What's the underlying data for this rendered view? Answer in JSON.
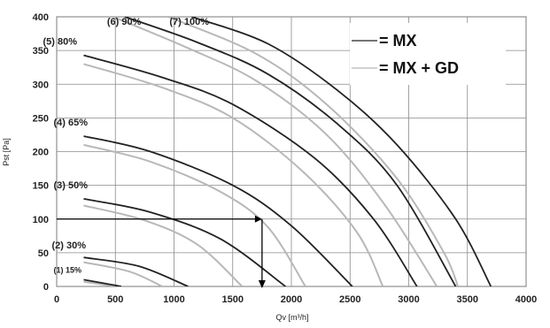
{
  "chart_data": {
    "type": "line",
    "xlabel": "Qv [m³/h]",
    "ylabel": "Pst [Pa]",
    "xlim": [
      0,
      4000
    ],
    "ylim": [
      0,
      400
    ],
    "x_ticks": [
      0,
      500,
      1000,
      1500,
      2000,
      2500,
      3000,
      3500,
      4000
    ],
    "y_ticks": [
      0,
      50,
      100,
      150,
      200,
      250,
      300,
      350,
      400
    ],
    "x_tick_labels": [
      "0",
      "500",
      "1000",
      "1500",
      "2000",
      "2500",
      "3000",
      "3500",
      "4000"
    ],
    "y_tick_labels": [
      "0",
      "50",
      "100",
      "150",
      "200",
      "250",
      "300",
      "350",
      "400"
    ],
    "grid": true,
    "legend": {
      "position": "top-right",
      "entries": [
        {
          "label": "= MX",
          "color": "#222222"
        },
        {
          "label": "= MX + GD",
          "color": "#b8b8b8"
        }
      ]
    },
    "series_colors": {
      "mx": "#222222",
      "mx_gd": "#b8b8b8",
      "guide": "#000000"
    },
    "series": [
      {
        "label": "(1) 15%",
        "mx": [
          [
            230,
            10
          ],
          [
            550,
            0
          ]
        ],
        "mx_gd": [
          [
            230,
            7
          ],
          [
            520,
            0
          ]
        ]
      },
      {
        "label": "(2) 30%",
        "mx": [
          [
            230,
            43
          ],
          [
            700,
            30
          ],
          [
            1120,
            0
          ]
        ],
        "mx_gd": [
          [
            230,
            36
          ],
          [
            620,
            22
          ],
          [
            900,
            0
          ]
        ]
      },
      {
        "label": "(3) 50%",
        "mx": [
          [
            230,
            130
          ],
          [
            800,
            110
          ],
          [
            1400,
            70
          ],
          [
            1950,
            0
          ]
        ],
        "mx_gd": [
          [
            230,
            120
          ],
          [
            750,
            98
          ],
          [
            1200,
            62
          ],
          [
            1580,
            0
          ]
        ]
      },
      {
        "label": "(4) 65%",
        "mx": [
          [
            230,
            223
          ],
          [
            800,
            200
          ],
          [
            1500,
            150
          ],
          [
            2000,
            90
          ],
          [
            2520,
            0
          ]
        ],
        "mx_gd": [
          [
            230,
            210
          ],
          [
            800,
            185
          ],
          [
            1400,
            140
          ],
          [
            1800,
            88
          ],
          [
            2120,
            0
          ]
        ]
      },
      {
        "label": "(5) 80%",
        "mx": [
          [
            230,
            343
          ],
          [
            900,
            310
          ],
          [
            1500,
            270
          ],
          [
            2200,
            190
          ],
          [
            2700,
            100
          ],
          [
            3070,
            0
          ]
        ],
        "mx_gd": [
          [
            230,
            330
          ],
          [
            900,
            295
          ],
          [
            1500,
            250
          ],
          [
            2100,
            170
          ],
          [
            2560,
            80
          ],
          [
            2780,
            0
          ]
        ]
      },
      {
        "label": "(6) 90%",
        "mx": [
          [
            580,
            400
          ],
          [
            1200,
            362
          ],
          [
            1800,
            315
          ],
          [
            2400,
            240
          ],
          [
            2900,
            150
          ],
          [
            3400,
            0
          ]
        ],
        "mx_gd": [
          [
            480,
            400
          ],
          [
            1100,
            355
          ],
          [
            1700,
            305
          ],
          [
            2300,
            225
          ],
          [
            2800,
            120
          ],
          [
            3240,
            0
          ]
        ]
      },
      {
        "label": "(7) 100%",
        "mx": [
          [
            1150,
            400
          ],
          [
            1800,
            360
          ],
          [
            2400,
            290
          ],
          [
            2900,
            210
          ],
          [
            3400,
            100
          ],
          [
            3700,
            0
          ]
        ],
        "mx_gd": [
          [
            950,
            400
          ],
          [
            1700,
            345
          ],
          [
            2300,
            270
          ],
          [
            2900,
            160
          ],
          [
            3300,
            50
          ],
          [
            3420,
            0
          ]
        ]
      }
    ],
    "guide": {
      "y": 100,
      "x": 1750
    }
  }
}
